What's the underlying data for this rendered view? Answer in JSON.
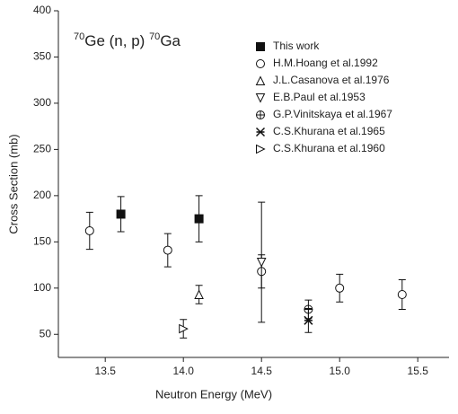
{
  "chart_data": {
    "type": "scatter",
    "annotation": [
      "70",
      "Ge (n, p) ",
      "70",
      "Ga"
    ],
    "x_label": "Neutron Energy (MeV)",
    "y_label": "Cross Section (mb)",
    "xlim": [
      13.2,
      15.7
    ],
    "xticks": [
      {
        "value": 13.5,
        "label": "13.5"
      },
      {
        "value": 14.0,
        "label": "14.0"
      },
      {
        "value": 14.5,
        "label": "14.5"
      },
      {
        "value": 15.0,
        "label": "15.0"
      },
      {
        "value": 15.5,
        "label": "15.5"
      }
    ],
    "ylim": [
      25,
      400
    ],
    "yticks": [
      50,
      100,
      150,
      200,
      250,
      300,
      350,
      400
    ],
    "legend": "top-right",
    "series": [
      {
        "name": "This work",
        "marker": "square",
        "filled": true,
        "color": "#111111",
        "x": [
          13.6,
          14.1
        ],
        "values": [
          180,
          175
        ],
        "errors": [
          19,
          25
        ]
      },
      {
        "name": "H.M.Hoang et al.1992",
        "marker": "circle",
        "filled": false,
        "color": "#111111",
        "x": [
          13.4,
          13.9,
          14.5,
          15.0,
          15.4
        ],
        "values": [
          162,
          141,
          118,
          100,
          93
        ],
        "errors": [
          20,
          18,
          18,
          15,
          16
        ]
      },
      {
        "name": "J.L.Casanova et al.1976",
        "marker": "triangle-up",
        "filled": false,
        "color": "#111111",
        "x": [
          14.1
        ],
        "values": [
          93
        ],
        "errors": [
          10
        ]
      },
      {
        "name": "E.B.Paul et al.1953",
        "marker": "triangle-down",
        "filled": false,
        "color": "#111111",
        "x": [
          14.5
        ],
        "values": [
          128
        ],
        "errors": [
          65
        ]
      },
      {
        "name": "G.P.Vinitskaya et al.1967",
        "marker": "circle-plus",
        "filled": false,
        "color": "#111111",
        "x": [
          14.8
        ],
        "values": [
          77
        ],
        "errors": [
          10
        ]
      },
      {
        "name": "C.S.Khurana et al.1965",
        "marker": "star-x",
        "filled": false,
        "color": "#111111",
        "x": [
          14.8
        ],
        "values": [
          65
        ],
        "errors": [
          13
        ]
      },
      {
        "name": "C.S.Khurana et al.1960",
        "marker": "triangle-right",
        "filled": false,
        "color": "#111111",
        "x": [
          14.0
        ],
        "values": [
          56
        ],
        "errors": [
          10
        ]
      }
    ]
  }
}
